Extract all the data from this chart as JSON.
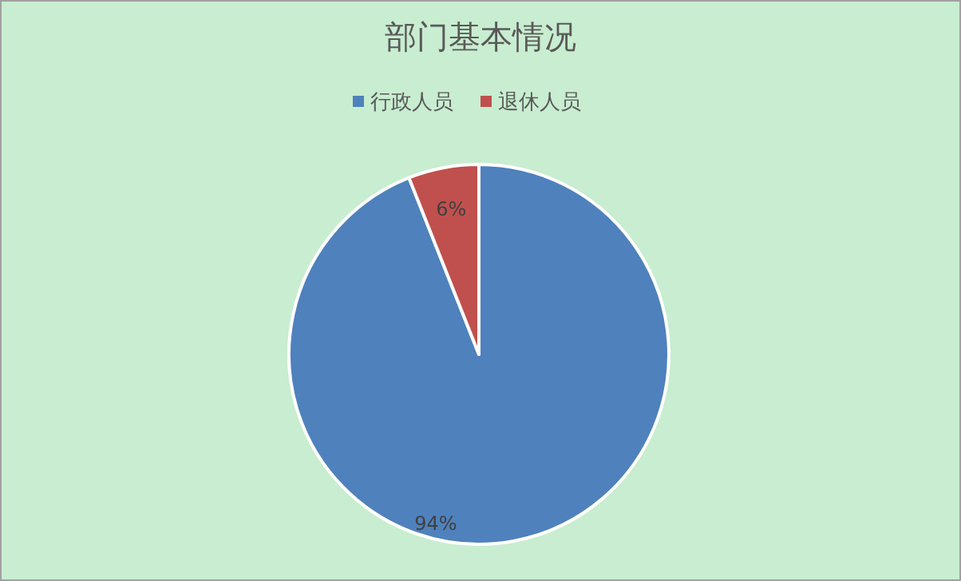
{
  "chart_data": {
    "type": "pie",
    "title": "部门基本情况",
    "categories": [
      "行政人员",
      "退休人员"
    ],
    "values": [
      94,
      6
    ],
    "colors": [
      "#4f81bd",
      "#c0504d"
    ],
    "value_labels": [
      "94%",
      "6%"
    ],
    "legend": "top"
  }
}
